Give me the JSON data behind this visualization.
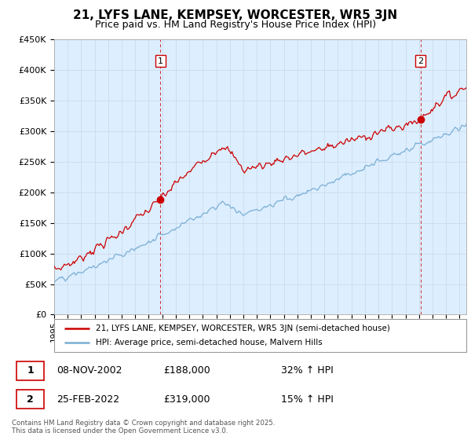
{
  "title": "21, LYFS LANE, KEMPSEY, WORCESTER, WR5 3JN",
  "subtitle": "Price paid vs. HM Land Registry's House Price Index (HPI)",
  "ylabel_ticks": [
    "£0",
    "£50K",
    "£100K",
    "£150K",
    "£200K",
    "£250K",
    "£300K",
    "£350K",
    "£400K",
    "£450K"
  ],
  "ytick_values": [
    0,
    50000,
    100000,
    150000,
    200000,
    250000,
    300000,
    350000,
    400000,
    450000
  ],
  "ylim": [
    0,
    450000
  ],
  "xlim_start": 1995.0,
  "xlim_end": 2025.5,
  "red_line_color": "#cc0000",
  "blue_line_color": "#7bafd4",
  "chart_bg_color": "#ddeeff",
  "dashed_red_color": "#cc0000",
  "purchase1_x": 2002.86,
  "purchase1_y": 188000,
  "purchase1_label": "1",
  "purchase2_x": 2022.12,
  "purchase2_y": 319000,
  "purchase2_label": "2",
  "legend_line1": "21, LYFS LANE, KEMPSEY, WORCESTER, WR5 3JN (semi-detached house)",
  "legend_line2": "HPI: Average price, semi-detached house, Malvern Hills",
  "table_row1": [
    "1",
    "08-NOV-2002",
    "£188,000",
    "32% ↑ HPI"
  ],
  "table_row2": [
    "2",
    "25-FEB-2022",
    "£319,000",
    "15% ↑ HPI"
  ],
  "footnote": "Contains HM Land Registry data © Crown copyright and database right 2025.\nThis data is licensed under the Open Government Licence v3.0.",
  "background_color": "#ffffff",
  "grid_color": "#c8d8e8",
  "title_fontsize": 11,
  "subtitle_fontsize": 9
}
